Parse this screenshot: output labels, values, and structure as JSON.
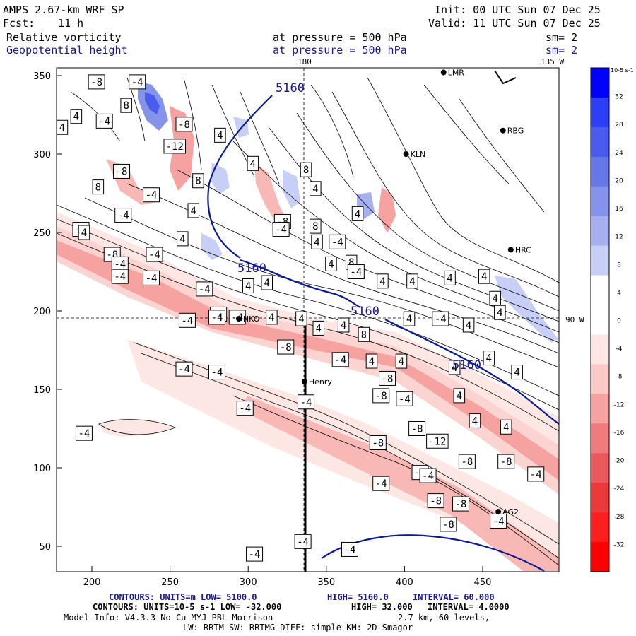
{
  "header": {
    "model": "AMPS 2.67-km WRF SP",
    "init": "Init: 00 UTC Sun 07 Dec 25",
    "fcst_label": "Fcst:",
    "fcst_value": "11 h",
    "valid": "Valid: 11 UTC Sun 07 Dec 25",
    "field1": "Relative vorticity",
    "field1_level": "at pressure =  500 hPa",
    "field1_sm": "sm= 2",
    "field2": "Geopotential height",
    "field2_level": "at pressure =  500 hPa",
    "field2_sm": "sm= 2"
  },
  "map_labels": {
    "lon_top": "180",
    "lon_right_top": "135 W",
    "lat_right": "90 W"
  },
  "axes": {
    "x_ticks": [
      "200",
      "250",
      "300",
      "350",
      "400",
      "450"
    ],
    "y_ticks": [
      "350",
      "300",
      "250",
      "200",
      "150",
      "100",
      "50"
    ]
  },
  "stations": [
    {
      "name": "LMR",
      "x": 425,
      "y": 352
    },
    {
      "name": "KLN",
      "x": 401,
      "y": 300
    },
    {
      "name": "RBG",
      "x": 463,
      "y": 315
    },
    {
      "name": "HRC",
      "x": 468,
      "y": 239
    },
    {
      "name": "NKO",
      "x": 294,
      "y": 195
    },
    {
      "name": "Henry",
      "x": 336,
      "y": 155
    },
    {
      "name": "AG2",
      "x": 460,
      "y": 72
    }
  ],
  "height_contour_labels": [
    "5160",
    "5160",
    "5160",
    "5160"
  ],
  "vorticity_labels": [
    {
      "t": "-8",
      "x": 203,
      "y": 346
    },
    {
      "t": "-4",
      "x": 229,
      "y": 346
    },
    {
      "t": "8",
      "x": 222,
      "y": 331
    },
    {
      "t": "4",
      "x": 190,
      "y": 324
    },
    {
      "t": "-4",
      "x": 208,
      "y": 321
    },
    {
      "t": "-8",
      "x": 259,
      "y": 319
    },
    {
      "t": "-12",
      "x": 253,
      "y": 305
    },
    {
      "t": "4",
      "x": 181,
      "y": 317
    },
    {
      "t": "-8",
      "x": 219,
      "y": 289
    },
    {
      "t": "8",
      "x": 204,
      "y": 279
    },
    {
      "t": "-4",
      "x": 238,
      "y": 274
    },
    {
      "t": "-4",
      "x": 220,
      "y": 261
    },
    {
      "t": "8",
      "x": 268,
      "y": 283
    },
    {
      "t": "4",
      "x": 265,
      "y": 264
    },
    {
      "t": "4",
      "x": 282,
      "y": 312
    },
    {
      "t": "4",
      "x": 303,
      "y": 294
    },
    {
      "t": "-8",
      "x": 322,
      "y": 257
    },
    {
      "t": "8",
      "x": 337,
      "y": 290
    },
    {
      "t": "-4",
      "x": 321,
      "y": 252
    },
    {
      "t": "8",
      "x": 343,
      "y": 254
    },
    {
      "t": "4",
      "x": 343,
      "y": 278
    },
    {
      "t": "-8",
      "x": 193,
      "y": 252
    },
    {
      "t": "4",
      "x": 195,
      "y": 250
    },
    {
      "t": "-8",
      "x": 213,
      "y": 236
    },
    {
      "t": "-4",
      "x": 218,
      "y": 230
    },
    {
      "t": "-4",
      "x": 240,
      "y": 236
    },
    {
      "t": "4",
      "x": 258,
      "y": 246
    },
    {
      "t": "-4",
      "x": 218,
      "y": 222
    },
    {
      "t": "-4",
      "x": 238,
      "y": 221
    },
    {
      "t": "-4",
      "x": 272,
      "y": 214
    },
    {
      "t": "4",
      "x": 344,
      "y": 244
    },
    {
      "t": "4",
      "x": 353,
      "y": 230
    },
    {
      "t": "-4",
      "x": 357,
      "y": 244
    },
    {
      "t": "8",
      "x": 366,
      "y": 231
    },
    {
      "t": "4",
      "x": 370,
      "y": 262
    },
    {
      "t": "-4",
      "x": 369,
      "y": 225
    },
    {
      "t": "4",
      "x": 386,
      "y": 219
    },
    {
      "t": "4",
      "x": 405,
      "y": 219
    },
    {
      "t": "4",
      "x": 429,
      "y": 221
    },
    {
      "t": "4",
      "x": 451,
      "y": 222
    },
    {
      "t": "4",
      "x": 458,
      "y": 208
    },
    {
      "t": "4",
      "x": 461,
      "y": 199
    },
    {
      "t": "4",
      "x": 300,
      "y": 216
    },
    {
      "t": "4",
      "x": 312,
      "y": 218
    },
    {
      "t": "-4",
      "x": 281,
      "y": 198
    },
    {
      "t": "-4",
      "x": 261,
      "y": 194
    },
    {
      "t": "-4",
      "x": 280,
      "y": 196
    },
    {
      "t": "-4",
      "x": 293,
      "y": 196
    },
    {
      "t": "4",
      "x": 315,
      "y": 196
    },
    {
      "t": "4",
      "x": 334,
      "y": 195
    },
    {
      "t": "4",
      "x": 345,
      "y": 189
    },
    {
      "t": "4",
      "x": 361,
      "y": 191
    },
    {
      "t": "8",
      "x": 374,
      "y": 185
    },
    {
      "t": "4",
      "x": 403,
      "y": 195
    },
    {
      "t": "-4",
      "x": 423,
      "y": 195
    },
    {
      "t": "4",
      "x": 441,
      "y": 191
    },
    {
      "t": "-8",
      "x": 324,
      "y": 177
    },
    {
      "t": "-4",
      "x": 359,
      "y": 169
    },
    {
      "t": "4",
      "x": 379,
      "y": 168
    },
    {
      "t": "4",
      "x": 398,
      "y": 168
    },
    {
      "t": "4",
      "x": 432,
      "y": 164
    },
    {
      "t": "4",
      "x": 454,
      "y": 170
    },
    {
      "t": "4",
      "x": 472,
      "y": 161
    },
    {
      "t": "-4",
      "x": 259,
      "y": 163
    },
    {
      "t": "-4",
      "x": 280,
      "y": 161
    },
    {
      "t": "-8",
      "x": 389,
      "y": 157
    },
    {
      "t": "-8",
      "x": 385,
      "y": 146
    },
    {
      "t": "-4",
      "x": 400,
      "y": 144
    },
    {
      "t": "4",
      "x": 435,
      "y": 146
    },
    {
      "t": "-4",
      "x": 337,
      "y": 142
    },
    {
      "t": "-4",
      "x": 298,
      "y": 138
    },
    {
      "t": "-8",
      "x": 408,
      "y": 125
    },
    {
      "t": "-12",
      "x": 421,
      "y": 117
    },
    {
      "t": "4",
      "x": 445,
      "y": 130
    },
    {
      "t": "4",
      "x": 465,
      "y": 126
    },
    {
      "t": "-8",
      "x": 440,
      "y": 104
    },
    {
      "t": "-8",
      "x": 465,
      "y": 104
    },
    {
      "t": "-4",
      "x": 484,
      "y": 96
    },
    {
      "t": "-8",
      "x": 383,
      "y": 116
    },
    {
      "t": "-8",
      "x": 410,
      "y": 97
    },
    {
      "t": "-4",
      "x": 415,
      "y": 95
    },
    {
      "t": "-4",
      "x": 385,
      "y": 90
    },
    {
      "t": "-8",
      "x": 420,
      "y": 79
    },
    {
      "t": "-8",
      "x": 436,
      "y": 77
    },
    {
      "t": "-4",
      "x": 460,
      "y": 66
    },
    {
      "t": "-8",
      "x": 428,
      "y": 64
    },
    {
      "t": "-4",
      "x": 195,
      "y": 122
    },
    {
      "t": "-4",
      "x": 335,
      "y": 53
    },
    {
      "t": "-4",
      "x": 365,
      "y": 48
    },
    {
      "t": "-4",
      "x": 304,
      "y": 45
    }
  ],
  "colorbar": {
    "units": "10-5 s-1",
    "labels": [
      "32",
      "28",
      "24",
      "20",
      "16",
      "12",
      "8",
      "4",
      "0",
      "-4",
      "-8",
      "-12",
      "-16",
      "-20",
      "-24",
      "-28",
      "-32"
    ],
    "colors": [
      "#0000ff",
      "#2d3ff5",
      "#4a5cec",
      "#6677e6",
      "#8593ea",
      "#a6b0ef",
      "#c8cff6",
      "#ffffff",
      "#ffffff",
      "#fde7e5",
      "#fbc9c6",
      "#f5a2a0",
      "#ef7b7c",
      "#ea5a5c",
      "#ea3a3a",
      "#ff1f1f",
      "#ff0000"
    ]
  },
  "footer": {
    "line1_a": "CONTOURS:  UNITS=m  LOW=  5100.0",
    "line1_b": "HIGH=  5160.0",
    "line1_c": "INTERVAL=  60.000",
    "line2_a": "CONTOURS:  UNITS=10-5 s-1  LOW= -32.000",
    "line2_b": "HIGH=  32.000",
    "line2_c": "INTERVAL=  4.0000",
    "line3": "Model Info: V4.3.3    No Cu    MYJ PBL  Morrison",
    "line3_b": "2.7 km,  60 levels,",
    "line4": "LW: RRTM SW: RRTMG   DIFF: simple KM: 2D Smagor"
  },
  "colors": {
    "blue_text": "#1a1a8c",
    "height_contour": "#0b1a8f",
    "vorticity_contour": "#000000"
  }
}
